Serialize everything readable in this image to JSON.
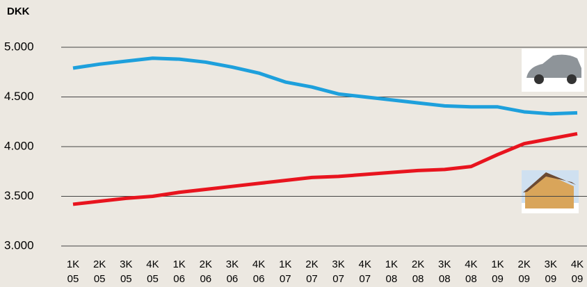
{
  "chart_data": {
    "type": "line",
    "y_label": "DKK",
    "categories": [
      [
        "1K",
        "05"
      ],
      [
        "2K",
        "05"
      ],
      [
        "3K",
        "05"
      ],
      [
        "4K",
        "05"
      ],
      [
        "1K",
        "06"
      ],
      [
        "2K",
        "06"
      ],
      [
        "3K",
        "06"
      ],
      [
        "4K",
        "06"
      ],
      [
        "1K",
        "07"
      ],
      [
        "2K",
        "07"
      ],
      [
        "3K",
        "07"
      ],
      [
        "4K",
        "07"
      ],
      [
        "1K",
        "08"
      ],
      [
        "2K",
        "08"
      ],
      [
        "3K",
        "08"
      ],
      [
        "4K",
        "08"
      ],
      [
        "1K",
        "09"
      ],
      [
        "2K",
        "09"
      ],
      [
        "3K",
        "09"
      ],
      [
        "4K",
        "09"
      ]
    ],
    "series": [
      {
        "color": "#1ea0dc",
        "values": [
          4790,
          4830,
          4860,
          4890,
          4880,
          4850,
          4800,
          4740,
          4650,
          4600,
          4530,
          4500,
          4470,
          4440,
          4410,
          4400,
          4400,
          4350,
          4330,
          4340
        ]
      },
      {
        "color": "#e8141e",
        "values": [
          3420,
          3450,
          3480,
          3500,
          3540,
          3570,
          3600,
          3630,
          3660,
          3690,
          3700,
          3720,
          3740,
          3760,
          3770,
          3800,
          3920,
          4030,
          4080,
          4130
        ]
      }
    ],
    "ylim": [
      3000,
      5000
    ],
    "yticks": [
      {
        "value": 3000,
        "label": "3.000"
      },
      {
        "value": 3500,
        "label": "3.500"
      },
      {
        "value": 4000,
        "label": "4.000"
      },
      {
        "value": 4500,
        "label": "4.500"
      },
      {
        "value": 5000,
        "label": "5.000"
      }
    ],
    "grid": true
  }
}
